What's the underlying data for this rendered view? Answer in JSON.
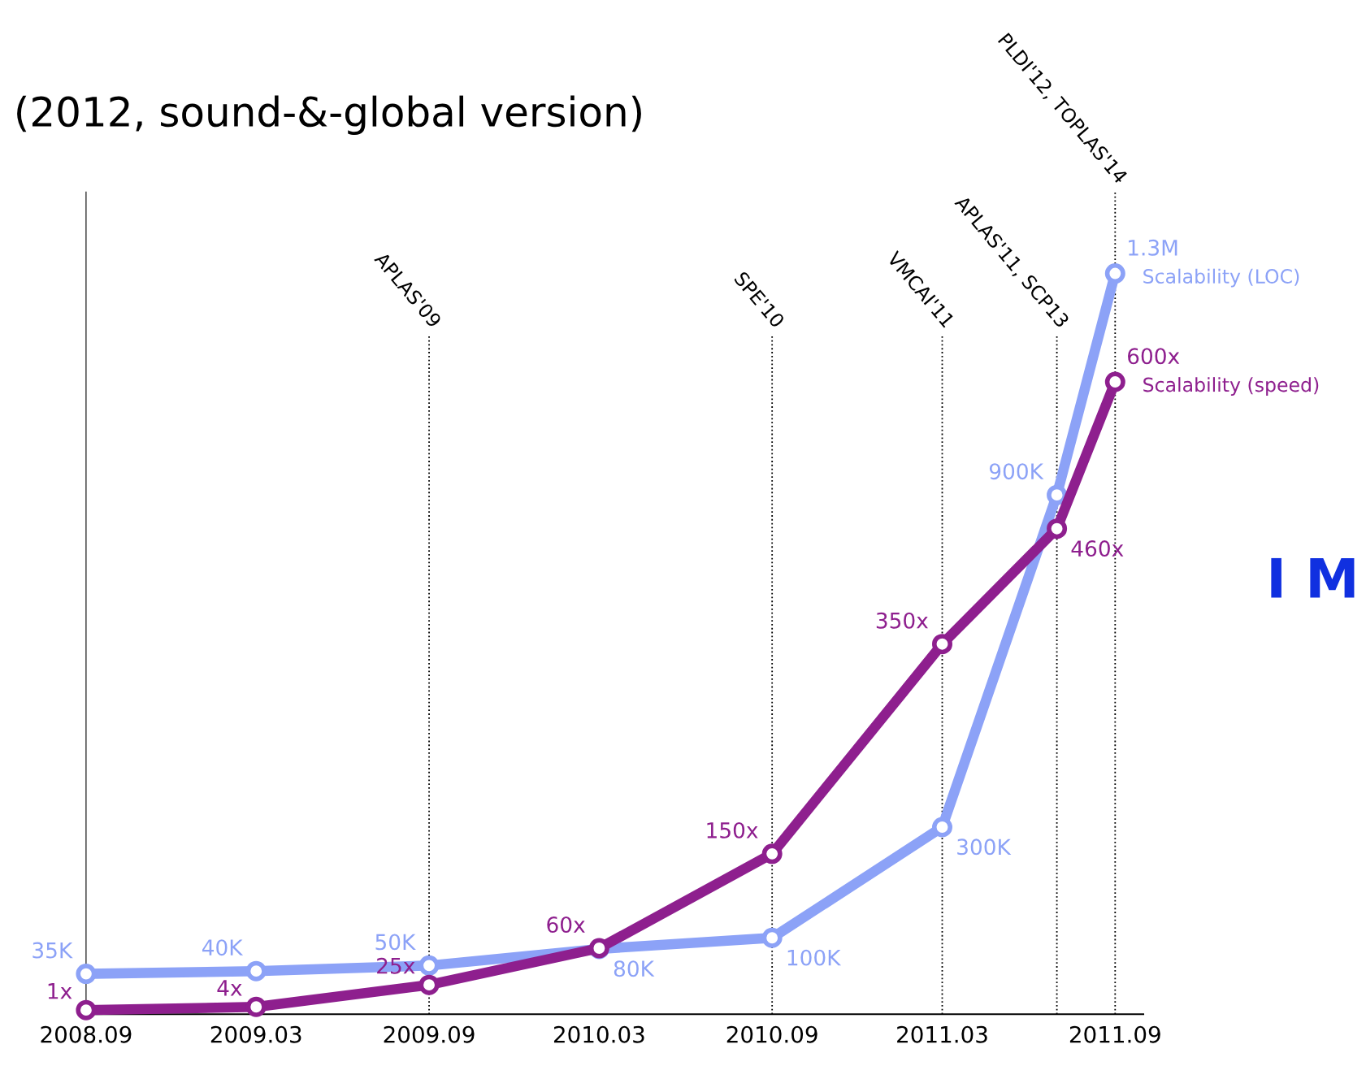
{
  "chart_data": {
    "type": "line",
    "title": "(2012, sound-&-global version)",
    "xlim": [
      "2008-09",
      "2011-10"
    ],
    "xticks": [
      {
        "value": "2008-09",
        "label": "2008.09"
      },
      {
        "value": "2009-03",
        "label": "2009.03"
      },
      {
        "value": "2009-09",
        "label": "2009.09"
      },
      {
        "value": "2010-03",
        "label": "2010.03"
      },
      {
        "value": "2010-09",
        "label": "2010.09"
      },
      {
        "value": "2011-03",
        "label": "2011.03"
      },
      {
        "value": "2011-09",
        "label": "2011.09"
      }
    ],
    "ylim": [
      -38000,
      1447000
    ],
    "y2lim": [
      -3,
      781
    ],
    "tick_labels": "x",
    "grid": false,
    "legend": false,
    "marker": "circle",
    "line_style": "solid",
    "series": [
      {
        "name": "Scalability (LOC)",
        "color": "#8ca2f7",
        "axis": "y",
        "x": [
          "2008-09",
          "2009-03",
          "2009-09",
          "2010-03",
          "2010-09",
          "2011-03",
          "2011-07",
          "2011-09"
        ],
        "values": [
          35000,
          40000,
          50000,
          80000,
          100000,
          300000,
          900000,
          1300000
        ],
        "value_labels": [
          "35K",
          "40K",
          "50K",
          "80K",
          "100K",
          "300K",
          "900K",
          "1.3M"
        ]
      },
      {
        "name": "Scalability (speed)",
        "color": "#8e1f8e",
        "axis": "y2",
        "x": [
          "2008-09",
          "2009-03",
          "2009-09",
          "2010-03",
          "2010-09",
          "2011-03",
          "2011-07",
          "2011-09"
        ],
        "values": [
          1,
          4,
          25,
          60,
          150,
          350,
          460,
          600
        ],
        "value_labels": [
          "1x",
          "4x",
          "25x",
          "60x",
          "150x",
          "350x",
          "460x",
          "600x"
        ]
      }
    ],
    "ref_lines": [
      {
        "axis": "x",
        "value": "2009-09",
        "label": "APLAS'09",
        "color": "#000000",
        "line_style": "dotted"
      },
      {
        "axis": "x",
        "value": "2010-09",
        "label": "SPE'10",
        "color": "#000000",
        "line_style": "dotted"
      },
      {
        "axis": "x",
        "value": "2011-03",
        "label": "VMCAI'11",
        "color": "#000000",
        "line_style": "dotted"
      },
      {
        "axis": "x",
        "value": "2011-07",
        "label": "APLAS'11, SCP13",
        "color": "#000000",
        "line_style": "dotted"
      },
      {
        "axis": "x",
        "value": "2011-09",
        "label": "PLDI'12, TOPLAS'14",
        "color": "#000000",
        "line_style": "dotted"
      }
    ],
    "annotations": [
      "I M"
    ]
  }
}
